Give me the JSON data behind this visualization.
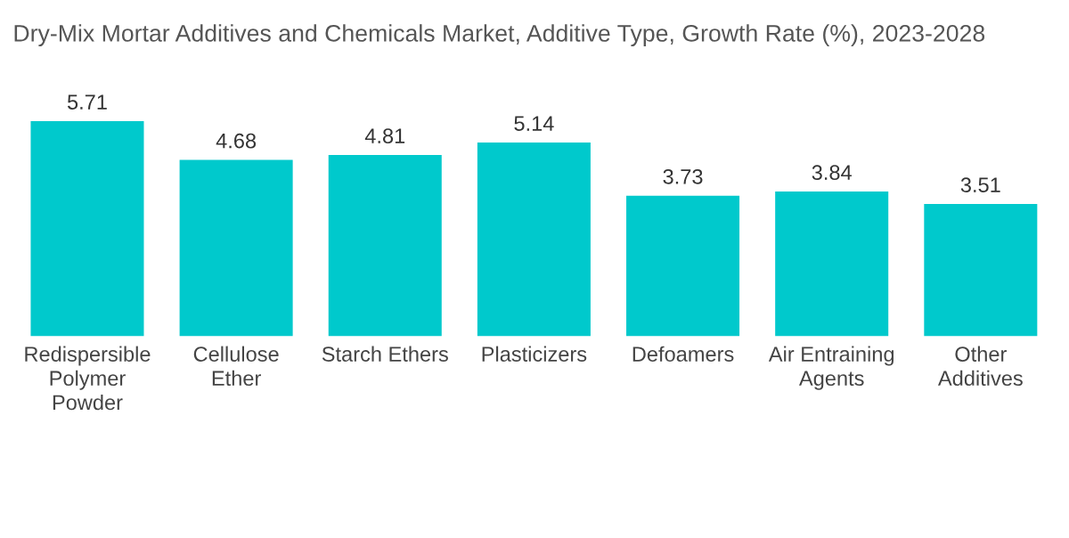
{
  "chart_data": {
    "type": "bar",
    "title": "Dry-Mix Mortar Additives and Chemicals Market, Additive Type, Growth Rate (%), 2023-2028",
    "categories": [
      "Redispersible\nPolymer\nPowder",
      "Cellulose\nEther",
      "Starch Ethers",
      "Plasticizers",
      "Defoamers",
      "Air Entraining\nAgents",
      "Other\nAdditives"
    ],
    "values": [
      5.71,
      4.68,
      4.81,
      5.14,
      3.73,
      3.84,
      3.51
    ],
    "color": "#00c9cc",
    "data_labels": true,
    "grid": false,
    "legend": false
  }
}
